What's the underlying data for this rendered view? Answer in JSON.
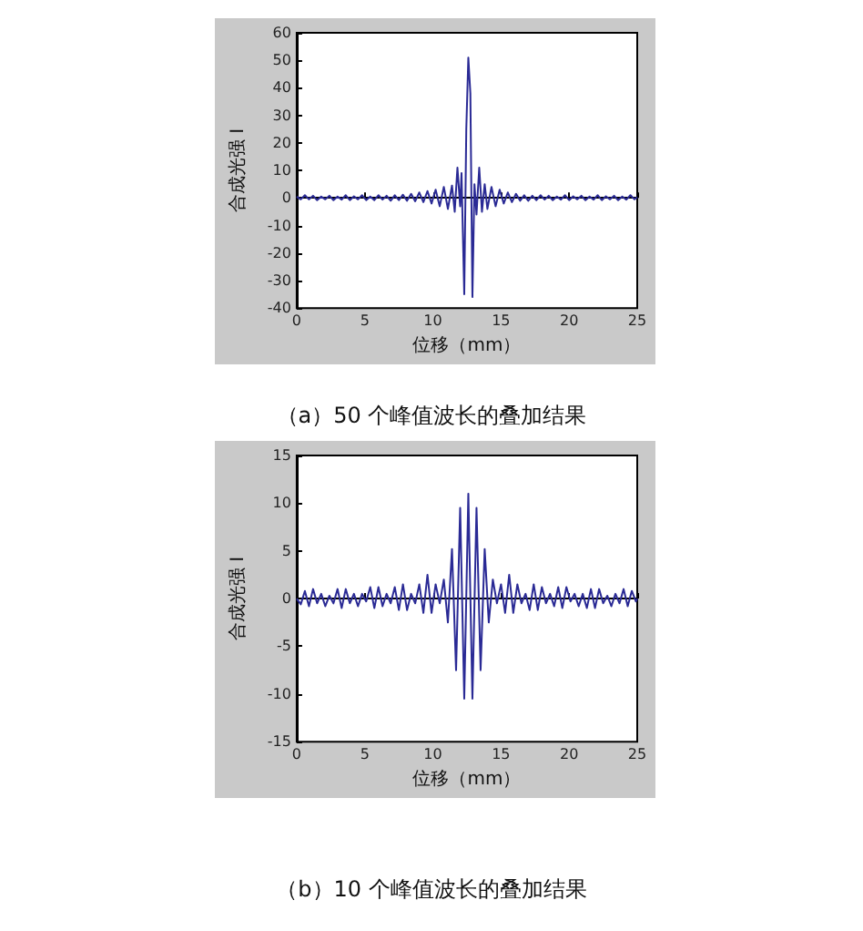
{
  "chart_data": [
    {
      "type": "line",
      "xlabel": "位移（mm）",
      "ylabel": "合成光强 I",
      "annotations": [
        "（a）50 个峰值波长的叠加结果"
      ],
      "color": "#2a2a95",
      "xlim": [
        0,
        25
      ],
      "xticks": [
        0,
        5,
        10,
        15,
        20,
        25
      ],
      "ylim": [
        -40,
        60
      ],
      "yticks": [
        -40,
        -30,
        -20,
        -10,
        0,
        10,
        20,
        30,
        40,
        50,
        60
      ],
      "x": [
        0,
        0.3,
        0.6,
        0.9,
        1.2,
        1.5,
        1.8,
        2.1,
        2.4,
        2.7,
        3.0,
        3.3,
        3.6,
        3.9,
        4.2,
        4.5,
        4.8,
        5.1,
        5.4,
        5.7,
        6.0,
        6.3,
        6.6,
        6.9,
        7.2,
        7.5,
        7.8,
        8.1,
        8.4,
        8.7,
        9.0,
        9.3,
        9.6,
        9.9,
        10.2,
        10.5,
        10.8,
        11.1,
        11.4,
        11.6,
        11.8,
        12.0,
        12.1,
        12.3,
        12.45,
        12.6,
        12.75,
        12.9,
        13.05,
        13.2,
        13.4,
        13.6,
        13.8,
        14.0,
        14.3,
        14.6,
        14.9,
        15.2,
        15.5,
        15.8,
        16.1,
        16.4,
        16.7,
        17.0,
        17.3,
        17.6,
        17.9,
        18.2,
        18.5,
        18.8,
        19.1,
        19.4,
        19.7,
        20.0,
        20.3,
        20.6,
        20.9,
        21.2,
        21.5,
        21.8,
        22.1,
        22.4,
        22.7,
        23.0,
        23.3,
        23.6,
        23.9,
        24.2,
        24.5,
        24.8,
        25
      ],
      "values": [
        0.5,
        -0.5,
        1,
        -0.5,
        0.8,
        -0.8,
        0.5,
        -0.5,
        0.8,
        -0.8,
        0.5,
        -0.6,
        1,
        -0.8,
        0.6,
        -0.5,
        1,
        -0.8,
        0.5,
        -0.8,
        1,
        -0.6,
        0.8,
        -1,
        1,
        -0.8,
        1.2,
        -1,
        1.5,
        -1.2,
        2,
        -1.5,
        2.5,
        -2,
        3,
        -3,
        4,
        -4,
        4.5,
        -5,
        11,
        -3,
        9,
        -35,
        25,
        51,
        38,
        -36,
        5,
        -6,
        11,
        -5,
        5,
        -4,
        4,
        -3,
        3,
        -2,
        2,
        -1.5,
        1.5,
        -1,
        1,
        -1,
        0.8,
        -0.8,
        1,
        -0.6,
        0.8,
        -0.8,
        0.5,
        -0.6,
        1,
        -0.8,
        0.6,
        -0.5,
        0.8,
        -0.8,
        0.5,
        -0.6,
        1,
        -0.8,
        0.6,
        -0.5,
        0.8,
        -0.8,
        0.5,
        -0.6,
        1,
        -0.5,
        0.3
      ]
    },
    {
      "type": "line",
      "xlabel": "位移（mm）",
      "ylabel": "合成光强 I",
      "annotations": [
        "（b）10 个峰值波长的叠加结果"
      ],
      "color": "#2a2a95",
      "xlim": [
        0,
        25
      ],
      "xticks": [
        0,
        5,
        10,
        15,
        20,
        25
      ],
      "ylim": [
        -15,
        15
      ],
      "yticks": [
        -15,
        -10,
        -5,
        0,
        5,
        10,
        15
      ],
      "x": [
        0,
        0.3,
        0.6,
        0.9,
        1.2,
        1.5,
        1.8,
        2.1,
        2.4,
        2.7,
        3.0,
        3.3,
        3.6,
        3.9,
        4.2,
        4.5,
        4.8,
        5.1,
        5.4,
        5.7,
        6.0,
        6.3,
        6.6,
        6.9,
        7.2,
        7.5,
        7.8,
        8.1,
        8.4,
        8.7,
        9.0,
        9.3,
        9.6,
        9.9,
        10.2,
        10.5,
        10.8,
        11.1,
        11.4,
        11.7,
        12.0,
        12.3,
        12.6,
        12.9,
        13.2,
        13.5,
        13.8,
        14.1,
        14.4,
        14.7,
        15.0,
        15.3,
        15.6,
        15.9,
        16.2,
        16.5,
        16.8,
        17.1,
        17.4,
        17.7,
        18.0,
        18.3,
        18.6,
        18.9,
        19.2,
        19.5,
        19.8,
        20.1,
        20.4,
        20.7,
        21.0,
        21.3,
        21.6,
        21.9,
        22.2,
        22.5,
        22.8,
        23.1,
        23.4,
        23.7,
        24.0,
        24.3,
        24.6,
        24.9,
        25
      ],
      "values": [
        0,
        -0.6,
        0.8,
        -0.8,
        1,
        -0.5,
        0.5,
        -0.8,
        0.3,
        -0.5,
        1,
        -1,
        1,
        -0.5,
        0.5,
        -0.8,
        0.5,
        -0.3,
        1.2,
        -1,
        1.2,
        -0.8,
        0.5,
        -0.5,
        1.2,
        -1.2,
        1.5,
        -1.2,
        0.5,
        -0.5,
        1.5,
        -1.5,
        2.5,
        -1.5,
        1.5,
        -0.5,
        2,
        -2.5,
        5.2,
        -7.5,
        9.5,
        -10.5,
        11,
        -10.5,
        9.5,
        -7.5,
        5.2,
        -2.5,
        2,
        -0.5,
        1.5,
        -1.5,
        2.5,
        -1.5,
        1.5,
        -0.5,
        0.5,
        -1.2,
        1.5,
        -1.2,
        1.2,
        -0.5,
        0.5,
        -0.8,
        1.2,
        -1,
        1.2,
        -0.3,
        0.5,
        -0.8,
        0.5,
        -1,
        1,
        -1,
        1,
        -0.5,
        0.3,
        -0.8,
        0.5,
        -0.5,
        1,
        -0.8,
        0.8,
        -0.3,
        0
      ]
    }
  ]
}
